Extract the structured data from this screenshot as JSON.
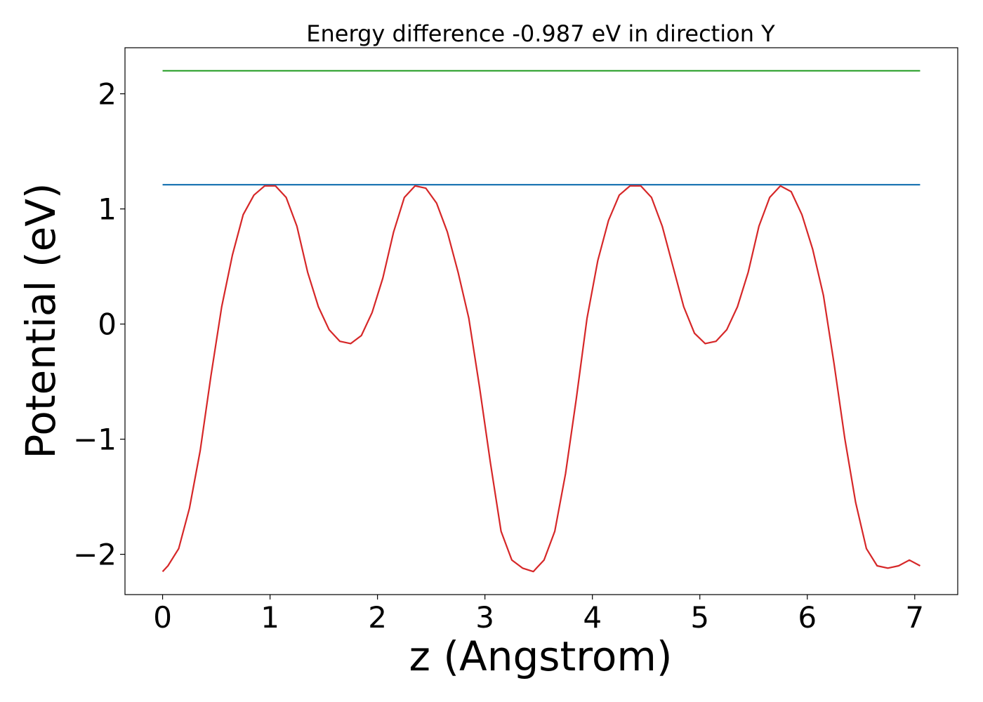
{
  "chart_data": {
    "type": "line",
    "title": "Energy difference -0.987 eV in direction Y",
    "xlabel": "z (Angstrom)",
    "ylabel": "Potential (eV)",
    "xlim": [
      -0.35,
      7.4
    ],
    "ylim": [
      -2.35,
      2.4
    ],
    "xticks": [
      0,
      1,
      2,
      3,
      4,
      5,
      6,
      7
    ],
    "xtick_labels": [
      "0",
      "1",
      "2",
      "3",
      "4",
      "5",
      "6",
      "7"
    ],
    "yticks": [
      -2,
      -1,
      0,
      1,
      2
    ],
    "ytick_labels": [
      "−2",
      "−1",
      "0",
      "1",
      "2"
    ],
    "grid": false,
    "series": [
      {
        "color": "#2ca02c",
        "x": [
          0,
          7.05
        ],
        "y": [
          2.2,
          2.2
        ]
      },
      {
        "color": "#1f77b4",
        "x": [
          0,
          7.05
        ],
        "y": [
          1.21,
          1.21
        ]
      },
      {
        "color": "#d62728",
        "x": [
          0,
          0.05,
          0.15,
          0.25,
          0.35,
          0.45,
          0.55,
          0.65,
          0.75,
          0.85,
          0.95,
          1.05,
          1.15,
          1.25,
          1.35,
          1.45,
          1.55,
          1.65,
          1.75,
          1.85,
          1.95,
          2.05,
          2.15,
          2.25,
          2.35,
          2.45,
          2.55,
          2.65,
          2.75,
          2.85,
          2.95,
          3.05,
          3.15,
          3.25,
          3.35,
          3.45,
          3.55,
          3.65,
          3.75,
          3.85,
          3.95,
          4.05,
          4.15,
          4.25,
          4.35,
          4.45,
          4.55,
          4.65,
          4.75,
          4.85,
          4.95,
          5.05,
          5.15,
          5.25,
          5.35,
          5.45,
          5.55,
          5.65,
          5.75,
          5.85,
          5.95,
          6.05,
          6.15,
          6.25,
          6.35,
          6.45,
          6.55,
          6.65,
          6.75,
          6.85,
          6.95,
          7.05
        ],
        "y": [
          -2.15,
          -2.1,
          -1.95,
          -1.6,
          -1.1,
          -0.45,
          0.15,
          0.6,
          0.95,
          1.12,
          1.2,
          1.2,
          1.1,
          0.85,
          0.45,
          0.15,
          -0.05,
          -0.15,
          -0.17,
          -0.1,
          0.1,
          0.4,
          0.8,
          1.1,
          1.2,
          1.18,
          1.05,
          0.8,
          0.45,
          0.05,
          -0.55,
          -1.2,
          -1.8,
          -2.05,
          -2.12,
          -2.15,
          -2.05,
          -1.8,
          -1.3,
          -0.65,
          0.05,
          0.55,
          0.9,
          1.12,
          1.2,
          1.2,
          1.1,
          0.85,
          0.5,
          0.15,
          -0.08,
          -0.17,
          -0.15,
          -0.05,
          0.15,
          0.45,
          0.85,
          1.1,
          1.2,
          1.15,
          0.95,
          0.65,
          0.25,
          -0.35,
          -1.0,
          -1.55,
          -1.95,
          -2.1,
          -2.12,
          -2.1,
          -2.05,
          -2.1
        ]
      }
    ]
  }
}
